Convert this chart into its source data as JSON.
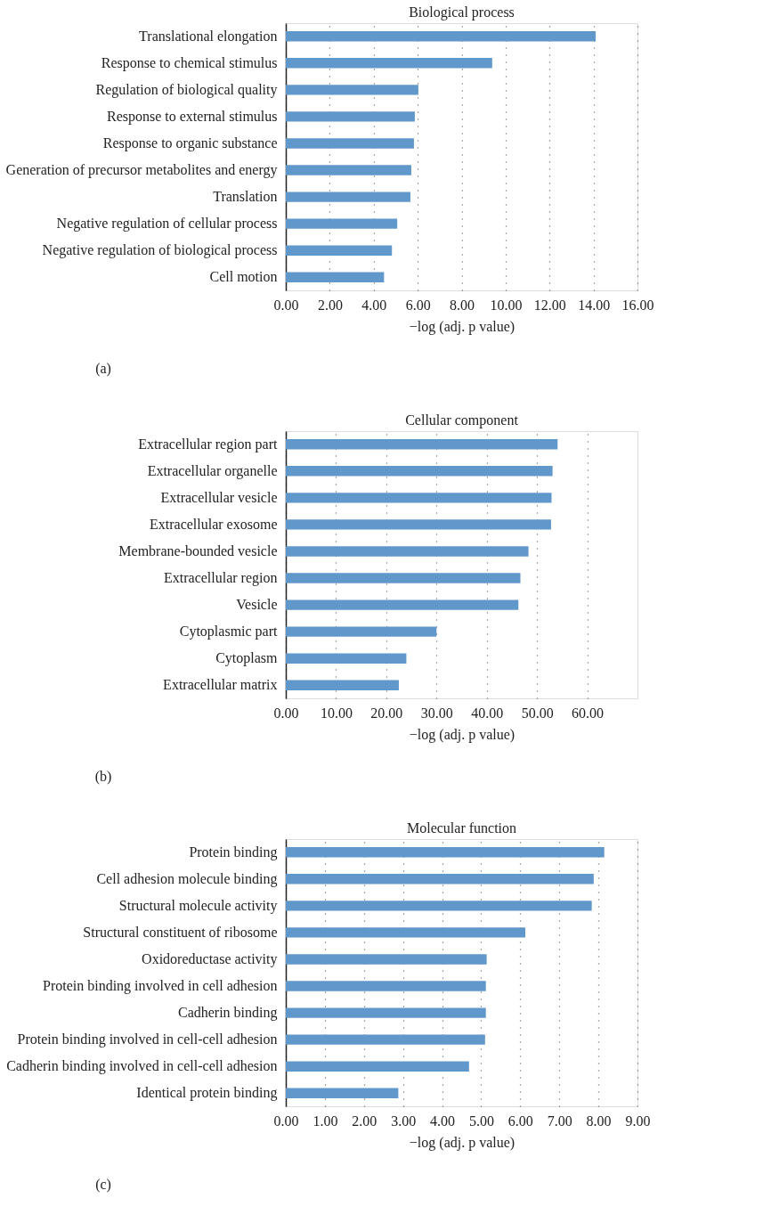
{
  "chart_data": [
    {
      "type": "bar",
      "orientation": "horizontal",
      "title": "Biological process",
      "xlabel": "−log (adj. p value)",
      "annotations": [
        "(a)"
      ],
      "grid": "x",
      "color": "#6198cb",
      "categories": [
        "Translational elongation",
        "Response to chemical stimulus",
        "Regulation of biological quality",
        "Response to external stimulus",
        "Response to organic substance",
        "Generation of precursor metabolites and energy",
        "Translation",
        "Negative regulation of cellular process",
        "Negative regulation of biological process",
        "Cell motion"
      ],
      "values": [
        14.1,
        9.39,
        6.03,
        5.87,
        5.83,
        5.71,
        5.67,
        5.07,
        4.83,
        4.47
      ],
      "xlim": [
        0,
        16
      ],
      "xticks": [
        {
          "value": 0,
          "label": "0.00"
        },
        {
          "value": 2,
          "label": "2.00"
        },
        {
          "value": 4,
          "label": "4.00"
        },
        {
          "value": 6,
          "label": "6.00"
        },
        {
          "value": 8,
          "label": "8.00"
        },
        {
          "value": 10,
          "label": "10.00"
        },
        {
          "value": 12,
          "label": "12.00"
        },
        {
          "value": 14,
          "label": "14.00"
        },
        {
          "value": 16,
          "label": "16.00"
        }
      ]
    },
    {
      "type": "bar",
      "orientation": "horizontal",
      "title": "Cellular component",
      "xlabel": "−log (adj. p value)",
      "annotations": [
        "(b)"
      ],
      "grid": "x",
      "color": "#6198cb",
      "categories": [
        "Extracellular region part",
        "Extracellular organelle",
        "Extracellular vesicle",
        "Extracellular exosome",
        "Membrane-bounded vesicle",
        "Extracellular region",
        "Vesicle",
        "Cytoplasmic part",
        "Cytoplasm",
        "Extracellular matrix"
      ],
      "values": [
        54.1,
        53.1,
        52.9,
        52.8,
        48.3,
        46.7,
        46.3,
        30.0,
        24.0,
        22.5
      ],
      "xlim": [
        0,
        70
      ],
      "xticks": [
        {
          "value": 0,
          "label": "0.00"
        },
        {
          "value": 10,
          "label": "10.00"
        },
        {
          "value": 20,
          "label": "20.00"
        },
        {
          "value": 30,
          "label": "30.00"
        },
        {
          "value": 40,
          "label": "40.00"
        },
        {
          "value": 50,
          "label": "50.00"
        },
        {
          "value": 60,
          "label": "60.00"
        }
      ]
    },
    {
      "type": "bar",
      "orientation": "horizontal",
      "title": "Molecular function",
      "xlabel": "−log (adj. p value)",
      "annotations": [
        "(c)"
      ],
      "grid": "x",
      "color": "#6198cb",
      "categories": [
        "Protein binding",
        "Cell adhesion molecule binding",
        "Structural molecule activity",
        "Structural constituent of ribosome",
        "Oxidoreductase activity",
        "Protein binding involved in cell adhesion",
        "Cadherin binding",
        "Protein binding involved in cell-cell adhesion",
        "Cadherin binding involved in cell-cell adhesion",
        "Identical protein binding"
      ],
      "values": [
        8.15,
        7.88,
        7.83,
        6.13,
        5.14,
        5.12,
        5.12,
        5.1,
        4.69,
        2.88
      ],
      "xlim": [
        0,
        9
      ],
      "xticks": [
        {
          "value": 0,
          "label": "0.00"
        },
        {
          "value": 1,
          "label": "1.00"
        },
        {
          "value": 2,
          "label": "2.00"
        },
        {
          "value": 3,
          "label": "3.00"
        },
        {
          "value": 4,
          "label": "4.00"
        },
        {
          "value": 5,
          "label": "5.00"
        },
        {
          "value": 6,
          "label": "6.00"
        },
        {
          "value": 7,
          "label": "7.00"
        },
        {
          "value": 8,
          "label": "8.00"
        },
        {
          "value": 9,
          "label": "9.00"
        }
      ]
    }
  ]
}
